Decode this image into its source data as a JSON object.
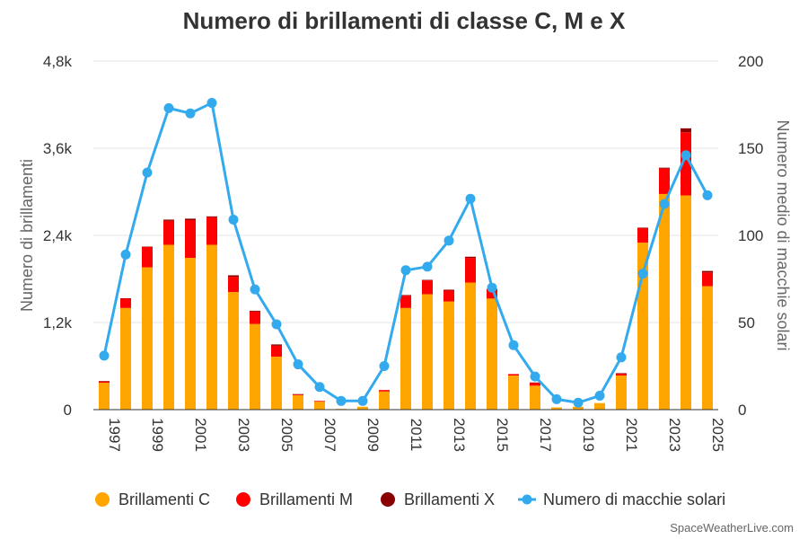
{
  "chart_data": {
    "type": "bar",
    "title": "Numero di brillamenti di classe C, M e X",
    "ylabel": "Numero di brillamenti",
    "y2label": "Numero medio di macchie solari",
    "ylim": [
      0,
      4800
    ],
    "y2lim": [
      0,
      200
    ],
    "yticks": [
      "0",
      "1,2k",
      "2,4k",
      "3,6k",
      "4,8k"
    ],
    "y2ticks": [
      "0",
      "50",
      "100",
      "150",
      "200"
    ],
    "stacked": true,
    "categories": [
      "1997",
      "1998",
      "1999",
      "2000",
      "2001",
      "2002",
      "2003",
      "2004",
      "2005",
      "2006",
      "2007",
      "2008",
      "2009",
      "2010",
      "2011",
      "2012",
      "2013",
      "2014",
      "2015",
      "2016",
      "2017",
      "2018",
      "2019",
      "2020",
      "2021",
      "2022",
      "2023",
      "2024",
      "2025"
    ],
    "xtick_labels": [
      "1997",
      "1999",
      "2001",
      "2003",
      "2005",
      "2007",
      "2009",
      "2011",
      "2013",
      "2015",
      "2017",
      "2019",
      "2021",
      "2023",
      "2025"
    ],
    "series": [
      {
        "name": "Brillamenti C",
        "color": "#FFA500",
        "values": [
          370,
          1400,
          1960,
          2270,
          2090,
          2270,
          1620,
          1180,
          730,
          200,
          110,
          10,
          40,
          250,
          1400,
          1590,
          1490,
          1750,
          1530,
          470,
          330,
          30,
          40,
          90,
          470,
          2300,
          2970,
          2950,
          1700
        ]
      },
      {
        "name": "Brillamenti M",
        "color": "#FF0000",
        "values": [
          20,
          130,
          280,
          330,
          520,
          380,
          210,
          170,
          150,
          10,
          10,
          0,
          0,
          20,
          170,
          190,
          150,
          340,
          130,
          20,
          40,
          0,
          0,
          0,
          30,
          200,
          350,
          870,
          190
        ]
      },
      {
        "name": "Brillamenti X",
        "color": "#8B0000",
        "values": [
          3,
          4,
          5,
          17,
          20,
          12,
          20,
          12,
          18,
          4,
          0,
          0,
          0,
          0,
          8,
          7,
          12,
          16,
          2,
          0,
          4,
          0,
          0,
          0,
          2,
          7,
          12,
          54,
          20
        ]
      },
      {
        "name": "Numero di macchie solari",
        "color": "#33AAEE",
        "axis": "right",
        "type": "line",
        "values": [
          31,
          89,
          136,
          173,
          170,
          176,
          109,
          69,
          49,
          26,
          13,
          5,
          5,
          25,
          80,
          82,
          97,
          121,
          70,
          37,
          19,
          6,
          4,
          8,
          30,
          78,
          118,
          146,
          123
        ]
      }
    ],
    "legend": "bottom"
  },
  "credit": "SpaceWeatherLive.com"
}
